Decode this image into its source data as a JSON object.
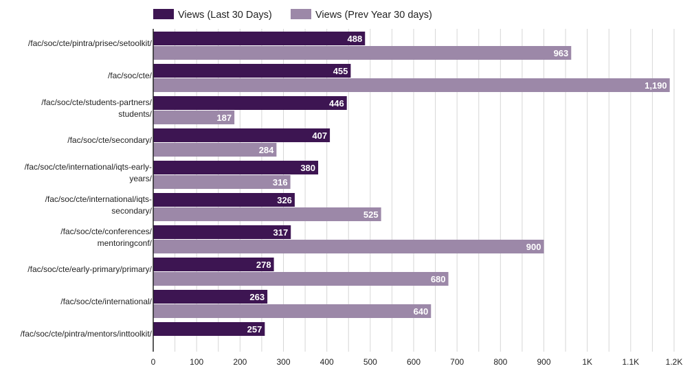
{
  "chart_data": {
    "type": "bar",
    "orientation": "horizontal",
    "categories": [
      {
        "label": "/fac/soc/cte/pintra/prisec/setoolkit/",
        "lines": [
          "/fac/soc/cte/pintra/prisec/setoolkit/"
        ]
      },
      {
        "label": "/fac/soc/cte/",
        "lines": [
          "/fac/soc/cte/"
        ]
      },
      {
        "label": "/fac/soc/cte/students-partners/students/",
        "lines": [
          "/fac/soc/cte/students-partners/",
          "students/"
        ]
      },
      {
        "label": "/fac/soc/cte/secondary/",
        "lines": [
          "/fac/soc/cte/secondary/"
        ]
      },
      {
        "label": "/fac/soc/cte/international/iqts-early-years/",
        "lines": [
          "/fac/soc/cte/international/iqts-early-",
          "years/"
        ]
      },
      {
        "label": "/fac/soc/cte/international/iqts-secondary/",
        "lines": [
          "/fac/soc/cte/international/iqts-",
          "secondary/"
        ]
      },
      {
        "label": "/fac/soc/cte/conferences/mentoringconf/",
        "lines": [
          "/fac/soc/cte/conferences/",
          "mentoringconf/"
        ]
      },
      {
        "label": "/fac/soc/cte/early-primary/primary/",
        "lines": [
          "/fac/soc/cte/early-primary/primary/"
        ]
      },
      {
        "label": "/fac/soc/cte/international/",
        "lines": [
          "/fac/soc/cte/international/"
        ]
      },
      {
        "label": "/fac/soc/cte/pintra/mentors/inttoolkit/",
        "lines": [
          "/fac/soc/cte/pintra/mentors/inttoolkit/"
        ]
      }
    ],
    "series": [
      {
        "name": "Views (Last 30 Days)",
        "color": "#3d1552",
        "values": [
          488,
          455,
          446,
          407,
          380,
          326,
          317,
          278,
          263,
          257
        ],
        "labels": [
          "488",
          "455",
          "446",
          "407",
          "380",
          "326",
          "317",
          "278",
          "263",
          "257"
        ]
      },
      {
        "name": "Views (Prev Year 30 days)",
        "color": "#9c88a8",
        "values": [
          963,
          1190,
          187,
          284,
          316,
          525,
          900,
          680,
          640,
          null
        ],
        "labels": [
          "963",
          "1,190",
          "187",
          "284",
          "316",
          "525",
          "900",
          "680",
          "640",
          null
        ]
      }
    ],
    "xlim": [
      0,
      1200
    ],
    "xticks": [
      0,
      100,
      200,
      300,
      400,
      500,
      600,
      700,
      800,
      900,
      1000,
      1100,
      1200
    ],
    "xtick_labels": [
      "0",
      "100",
      "200",
      "300",
      "400",
      "500",
      "600",
      "700",
      "800",
      "900",
      "1K",
      "1.1K",
      "1.2K"
    ],
    "minor_grid_step": 50,
    "grid": true,
    "legend_position": "top",
    "title": "",
    "xlabel": "",
    "ylabel": ""
  }
}
